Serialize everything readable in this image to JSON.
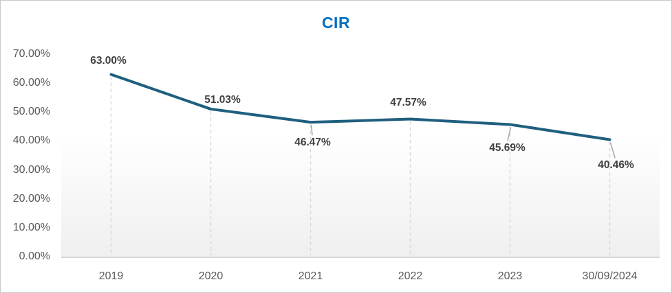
{
  "title": "CIR",
  "colors": {
    "title_text": "#0070C0",
    "series_line": "#1F5F7E",
    "data_label_text": "#404040",
    "axis_label_text": "#595959",
    "drop_line": "#D9D9D9",
    "leader_line": "#A6A6A6",
    "axis_line": "#D6D6D6",
    "chart_border": "#C9C9C9",
    "plot_gradient_bottom": "#EFEFEF"
  },
  "chart_data": {
    "type": "line",
    "title": "CIR",
    "categories": [
      "2019",
      "2020",
      "2021",
      "2022",
      "2023",
      "30/09/2024"
    ],
    "series": [
      {
        "name": "CIR",
        "values": [
          63.0,
          51.03,
          46.47,
          47.57,
          45.69,
          40.46
        ]
      }
    ],
    "data_labels": [
      "63.00%",
      "51.03%",
      "46.47%",
      "47.57%",
      "45.69%",
      "40.46%"
    ],
    "data_label_positions": [
      "above",
      "above",
      "below",
      "above",
      "below",
      "below"
    ],
    "leader_lines": [
      false,
      false,
      true,
      false,
      true,
      true
    ],
    "xlabel": "",
    "ylabel": "",
    "ylim": [
      0,
      70
    ],
    "y_tick_step": 10,
    "y_tick_labels": [
      "0.00%",
      "10.00%",
      "20.00%",
      "30.00%",
      "40.00%",
      "50.00%",
      "60.00%",
      "70.00%"
    ],
    "gridlines": "none",
    "drop_lines": "dashed vertical line from each data point to x-axis",
    "legend": "none"
  }
}
